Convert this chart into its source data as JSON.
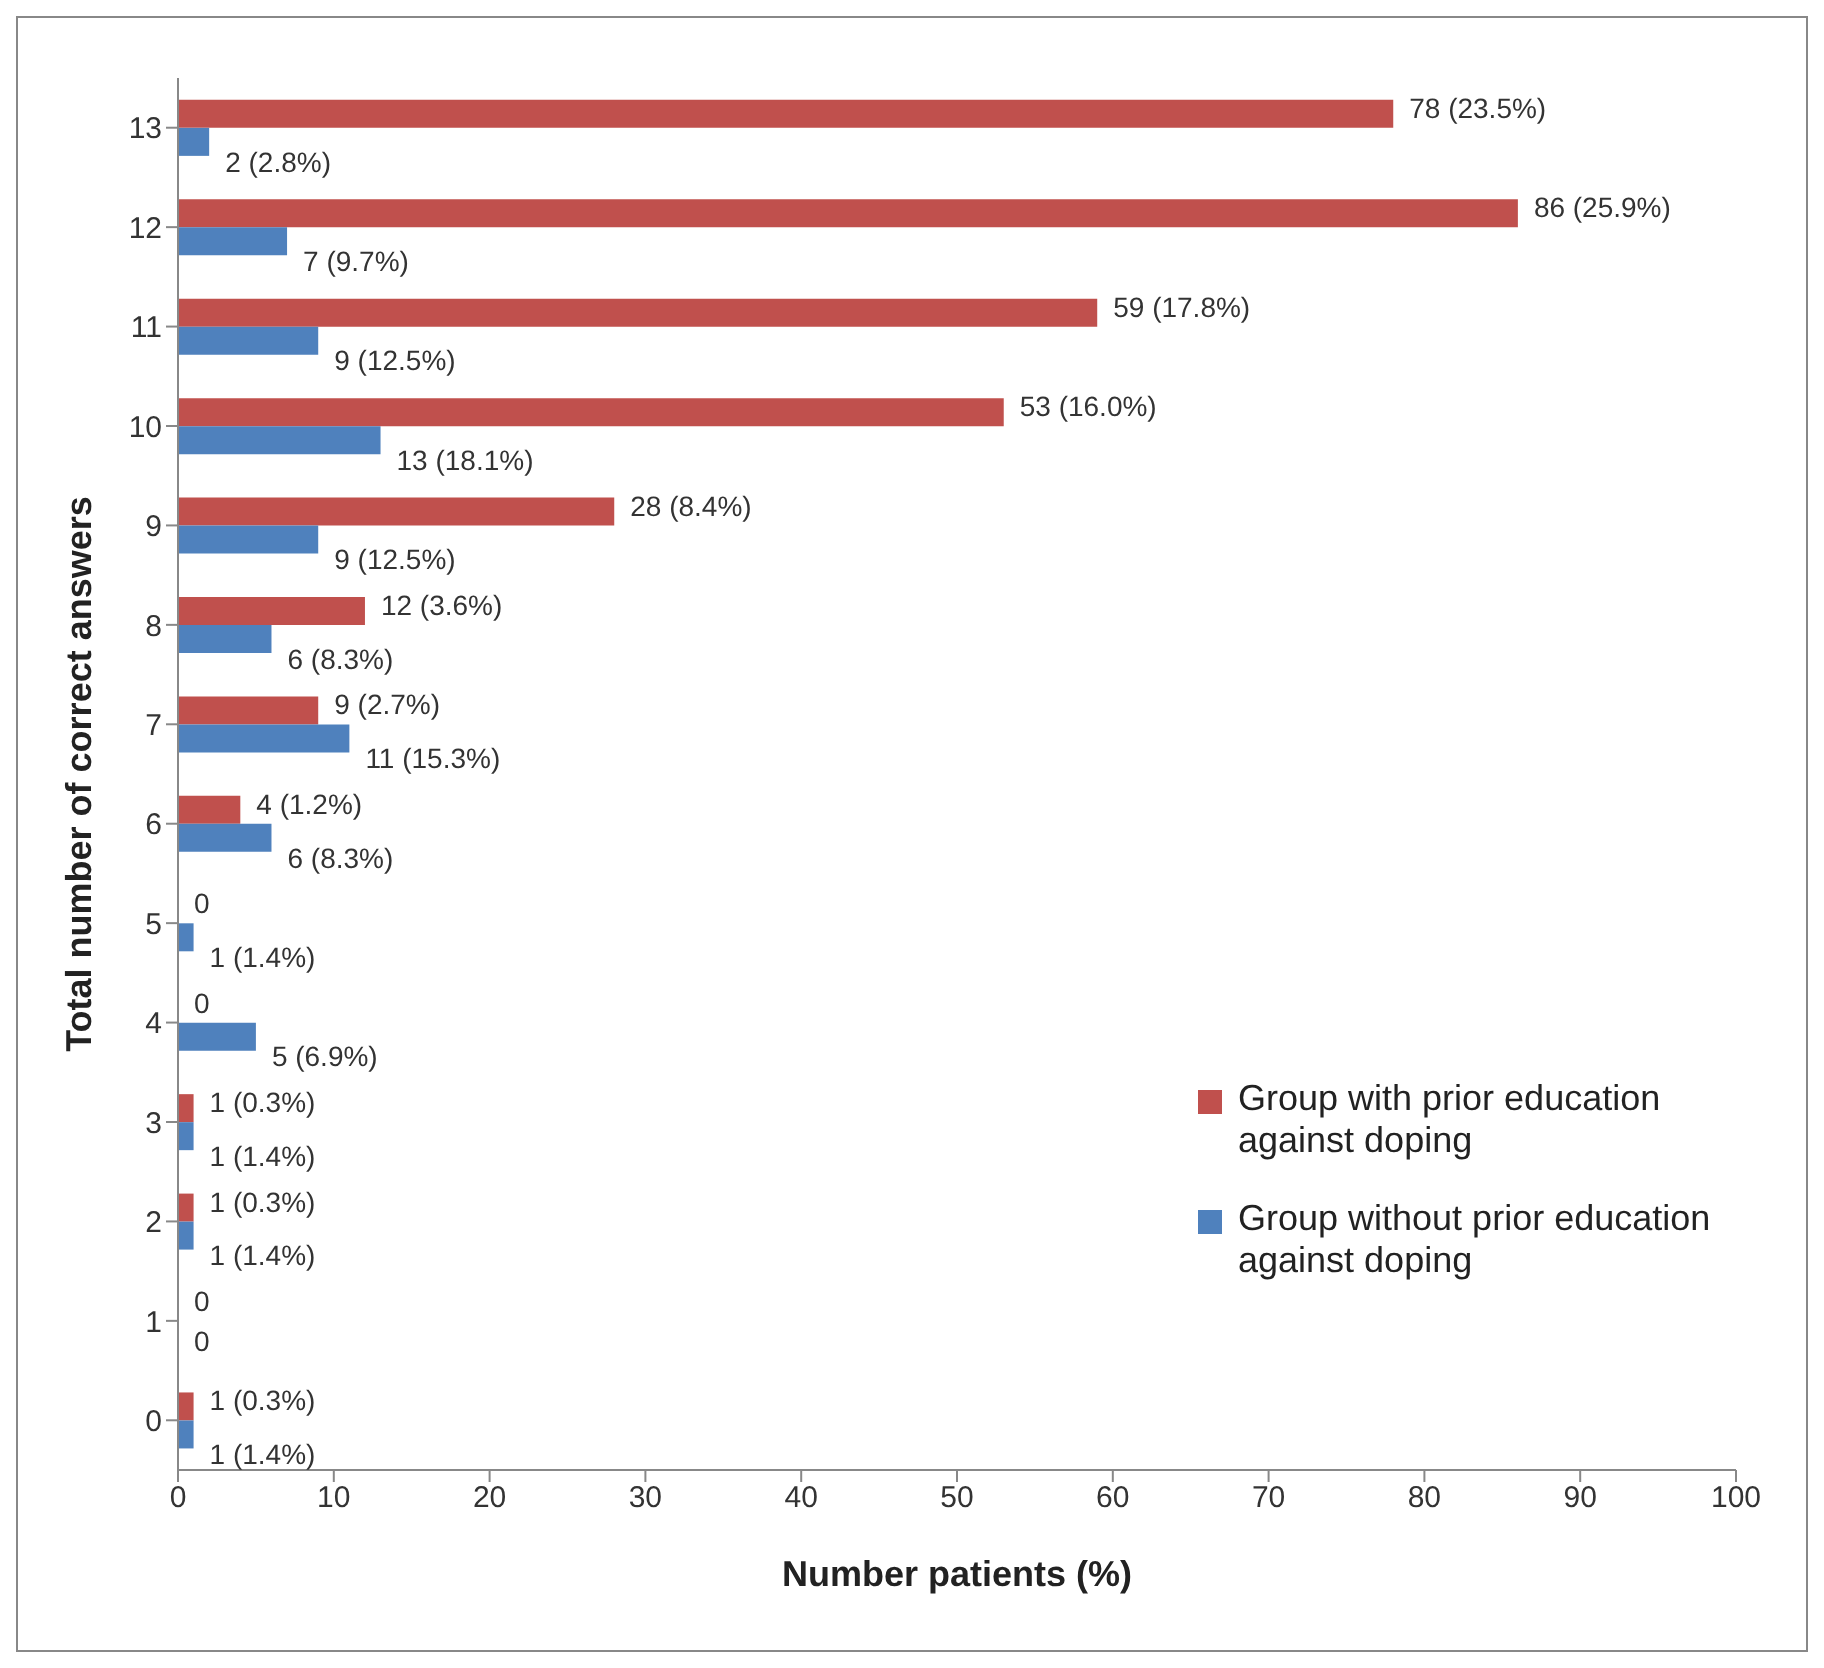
{
  "chart_data": {
    "type": "bar",
    "orientation": "horizontal",
    "xlabel": "Number patients (%)",
    "ylabel": "Total number of correct answers",
    "categories": [
      "13",
      "12",
      "11",
      "10",
      "9",
      "8",
      "7",
      "6",
      "5",
      "4",
      "3",
      "2",
      "1",
      "0"
    ],
    "series": [
      {
        "name": "Group with prior education against doping",
        "color": "#c0504d",
        "values": [
          78,
          86,
          59,
          53,
          28,
          12,
          9,
          4,
          0,
          0,
          1,
          1,
          0,
          1
        ],
        "value_labels": [
          "78 (23.5%)",
          "86 (25.9%)",
          "59 (17.8%)",
          "53 (16.0%)",
          "28 (8.4%)",
          "12 (3.6%)",
          "9 (2.7%)",
          "4 (1.2%)",
          "0",
          "0",
          "1 (0.3%)",
          "1 (0.3%)",
          "0",
          "1 (0.3%)"
        ]
      },
      {
        "name": "Group without prior education against doping",
        "color": "#4f81bd",
        "values": [
          2,
          7,
          9,
          13,
          9,
          6,
          11,
          6,
          1,
          5,
          1,
          1,
          0,
          1
        ],
        "value_labels": [
          "2 (2.8%)",
          "7 (9.7%)",
          "9 (12.5%)",
          "13 (18.1%)",
          "9 (12.5%)",
          "6 (8.3%)",
          "11 (15.3%)",
          "6 (8.3%)",
          "1 (1.4%)",
          "5 (6.9%)",
          "1 (1.4%)",
          "1 (1.4%)",
          "0",
          "1 (1.4%)"
        ]
      }
    ],
    "xlim": [
      0,
      100
    ],
    "xticks": [
      0,
      10,
      20,
      30,
      40,
      50,
      60,
      70,
      80,
      90,
      100
    ],
    "grid": false,
    "legend": "right"
  }
}
